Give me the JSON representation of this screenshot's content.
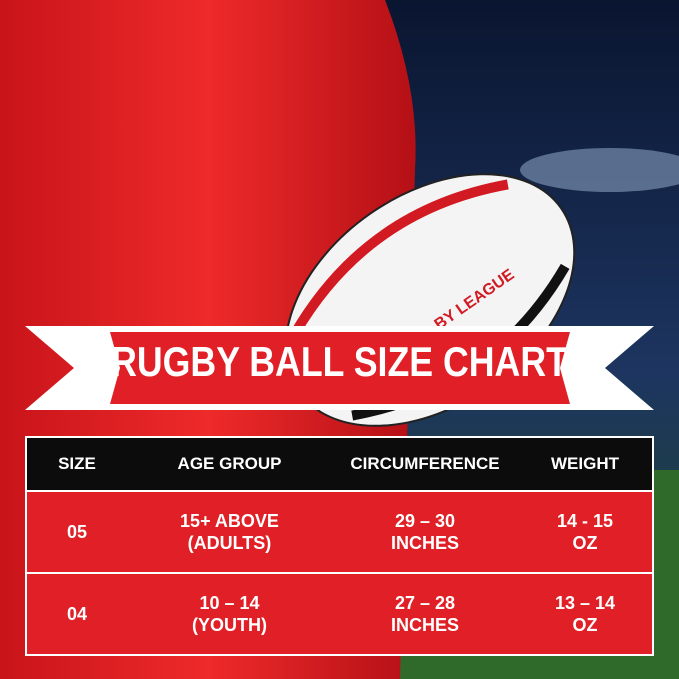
{
  "banner": {
    "title": "RUGBY BALL SIZE CHART"
  },
  "ball_text": "BY LEAGUE",
  "table": {
    "headers": [
      "SIZE",
      "AGE GROUP",
      "CIRCUMFERENCE",
      "WEIGHT"
    ],
    "rows": [
      [
        "05",
        "15+ ABOVE\n(ADULTS)",
        "29 – 30\nINCHES",
        "14 - 15\nOZ"
      ],
      [
        "04",
        "10 – 14\n(YOUTH)",
        "27 – 28\nINCHES",
        "13 – 14\nOZ"
      ]
    ]
  }
}
